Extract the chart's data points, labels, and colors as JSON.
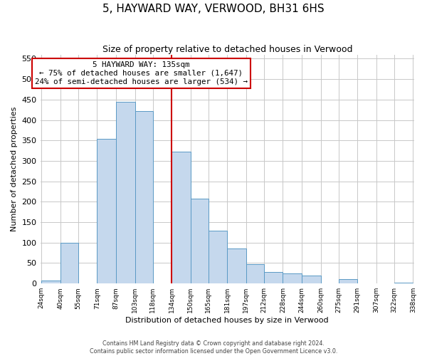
{
  "title": "5, HAYWARD WAY, VERWOOD, BH31 6HS",
  "subtitle": "Size of property relative to detached houses in Verwood",
  "xlabel": "Distribution of detached houses by size in Verwood",
  "ylabel": "Number of detached properties",
  "bar_left_edges": [
    24,
    40,
    55,
    71,
    87,
    103,
    118,
    134,
    150,
    165,
    181,
    197,
    212,
    228,
    244,
    260,
    275,
    291,
    307,
    322
  ],
  "bar_widths": [
    16,
    15,
    16,
    16,
    16,
    15,
    16,
    16,
    15,
    16,
    16,
    15,
    16,
    16,
    16,
    15,
    16,
    16,
    15,
    16
  ],
  "bar_heights": [
    7,
    100,
    0,
    354,
    444,
    422,
    0,
    322,
    208,
    130,
    85,
    48,
    29,
    25,
    20,
    0,
    10,
    0,
    0,
    2
  ],
  "bar_color": "#c5d8ed",
  "bar_edge_color": "#5a9ac5",
  "vline_x": 134,
  "vline_color": "#cc0000",
  "annotation_line1": "5 HAYWARD WAY: 135sqm",
  "annotation_line2": "← 75% of detached houses are smaller (1,647)",
  "annotation_line3": "24% of semi-detached houses are larger (534) →",
  "annotation_box_color": "#cc0000",
  "ytick_labels": [
    0,
    50,
    100,
    150,
    200,
    250,
    300,
    350,
    400,
    450,
    500,
    550
  ],
  "xtick_labels": [
    "24sqm",
    "40sqm",
    "55sqm",
    "71sqm",
    "87sqm",
    "103sqm",
    "118sqm",
    "134sqm",
    "150sqm",
    "165sqm",
    "181sqm",
    "197sqm",
    "212sqm",
    "228sqm",
    "244sqm",
    "260sqm",
    "275sqm",
    "291sqm",
    "307sqm",
    "322sqm",
    "338sqm"
  ],
  "ylim": [
    0,
    560
  ],
  "footer_line1": "Contains HM Land Registry data © Crown copyright and database right 2024.",
  "footer_line2": "Contains public sector information licensed under the Open Government Licence v3.0.",
  "background_color": "#ffffff",
  "grid_color": "#c8c8c8",
  "title_fontsize": 11,
  "subtitle_fontsize": 9,
  "ylabel_fontsize": 8,
  "xlabel_fontsize": 8,
  "ytick_fontsize": 8,
  "xtick_fontsize": 6.5,
  "annotation_fontsize": 7.8,
  "footer_fontsize": 5.8
}
